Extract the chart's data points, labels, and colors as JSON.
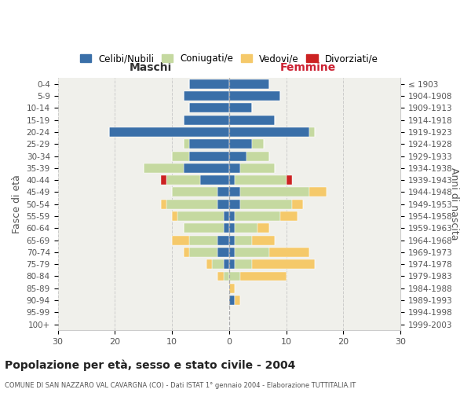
{
  "age_groups": [
    "0-4",
    "5-9",
    "10-14",
    "15-19",
    "20-24",
    "25-29",
    "30-34",
    "35-39",
    "40-44",
    "45-49",
    "50-54",
    "55-59",
    "60-64",
    "65-69",
    "70-74",
    "75-79",
    "80-84",
    "85-89",
    "90-94",
    "95-99",
    "100+"
  ],
  "birth_years": [
    "1999-2003",
    "1994-1998",
    "1989-1993",
    "1984-1988",
    "1979-1983",
    "1974-1978",
    "1969-1973",
    "1964-1968",
    "1959-1963",
    "1954-1958",
    "1949-1953",
    "1944-1948",
    "1939-1943",
    "1934-1938",
    "1929-1933",
    "1924-1928",
    "1919-1923",
    "1914-1918",
    "1909-1913",
    "1904-1908",
    "≤ 1903"
  ],
  "maschi": {
    "celibi": [
      7,
      8,
      7,
      8,
      21,
      7,
      7,
      8,
      5,
      2,
      2,
      1,
      1,
      2,
      2,
      1,
      0,
      0,
      0,
      0,
      0
    ],
    "coniugati": [
      0,
      0,
      0,
      0,
      0,
      1,
      3,
      7,
      6,
      8,
      9,
      8,
      7,
      5,
      5,
      2,
      1,
      0,
      0,
      0,
      0
    ],
    "vedovi": [
      0,
      0,
      0,
      0,
      0,
      0,
      0,
      0,
      0,
      0,
      1,
      1,
      0,
      3,
      1,
      1,
      1,
      0,
      0,
      0,
      0
    ],
    "divorziati": [
      0,
      0,
      0,
      0,
      0,
      0,
      0,
      0,
      1,
      0,
      0,
      0,
      0,
      0,
      0,
      0,
      0,
      0,
      0,
      0,
      0
    ]
  },
  "femmine": {
    "nubili": [
      7,
      9,
      4,
      8,
      14,
      4,
      3,
      2,
      1,
      2,
      2,
      1,
      1,
      1,
      1,
      1,
      0,
      0,
      1,
      0,
      0
    ],
    "coniugate": [
      0,
      0,
      0,
      0,
      1,
      2,
      4,
      6,
      9,
      12,
      9,
      8,
      4,
      3,
      6,
      3,
      2,
      0,
      0,
      0,
      0
    ],
    "vedove": [
      0,
      0,
      0,
      0,
      0,
      0,
      0,
      0,
      0,
      3,
      2,
      3,
      2,
      4,
      7,
      11,
      8,
      1,
      1,
      0,
      0
    ],
    "divorziate": [
      0,
      0,
      0,
      0,
      0,
      0,
      0,
      0,
      1,
      0,
      0,
      0,
      0,
      0,
      0,
      0,
      0,
      0,
      0,
      0,
      0
    ]
  },
  "colors": {
    "celibi": "#3a6fa8",
    "coniugati": "#c5d9a0",
    "vedovi": "#f5c96a",
    "divorziati": "#cc2222"
  },
  "xlim": 30,
  "title": "Popolazione per età, sesso e stato civile - 2004",
  "subtitle": "COMUNE DI SAN NAZZARO VAL CAVARGNA (CO) - Dati ISTAT 1° gennaio 2004 - Elaborazione TUTTITALIA.IT",
  "ylabel_left": "Fasce di età",
  "ylabel_right": "Anni di nascita",
  "legend_labels": [
    "Celibi/Nubili",
    "Coniugati/e",
    "Vedovi/e",
    "Divorziati/e"
  ],
  "maschi_label": "Maschi",
  "femmine_label": "Femmine",
  "bg_color": "#ffffff",
  "plot_bg": "#f0f0eb"
}
